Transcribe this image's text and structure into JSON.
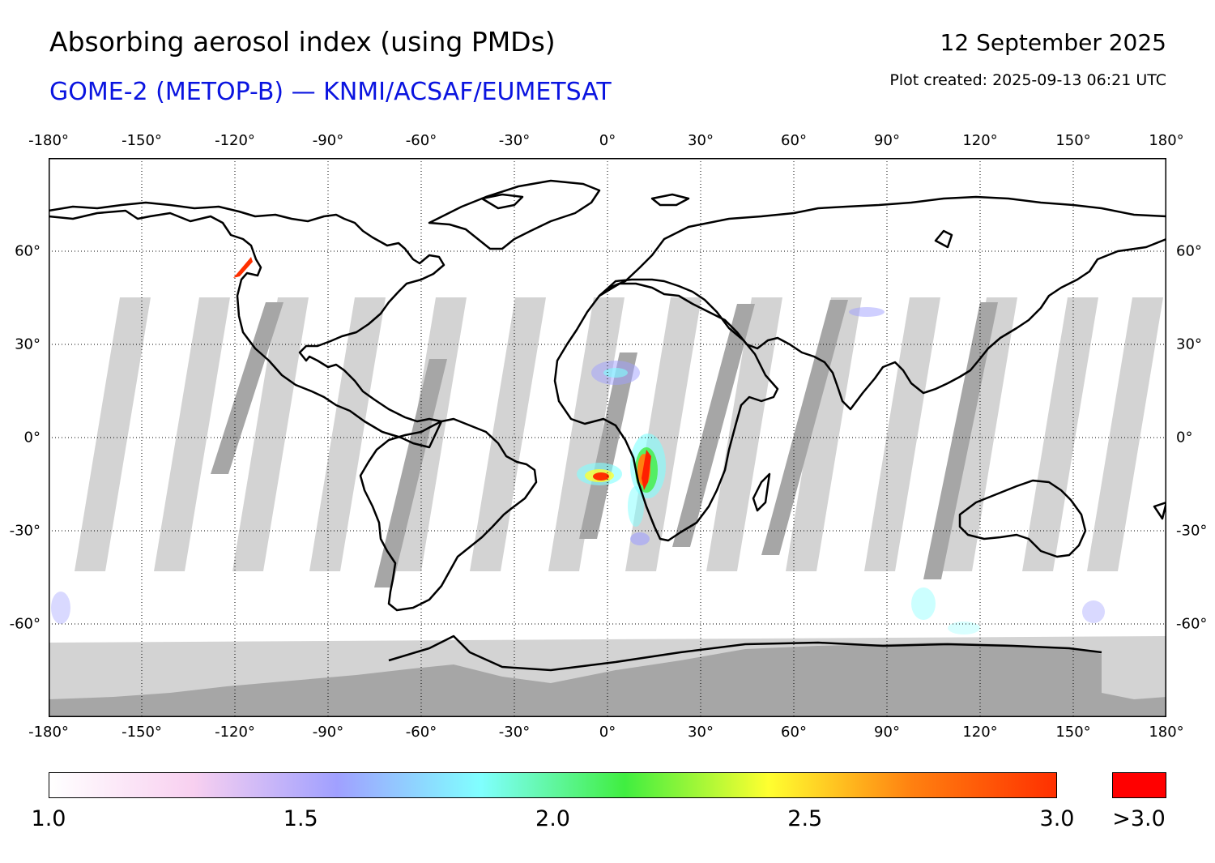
{
  "header": {
    "title": "Absorbing aerosol index (using PMDs)",
    "subtitle": "GOME-2 (METOP-B) — KNMI/ACSAF/EUMETSAT",
    "date": "12 September 2025",
    "plot_created": "Plot created: 2025-09-13 06:21 UTC"
  },
  "map": {
    "projection": "equirectangular",
    "lon_range": [
      -180,
      180
    ],
    "lat_range": [
      -90,
      90
    ],
    "gridlines": "dotted",
    "lon_ticks": [
      {
        "value": -180,
        "label": "-180°"
      },
      {
        "value": -150,
        "label": "-150°"
      },
      {
        "value": -120,
        "label": "-120°"
      },
      {
        "value": -90,
        "label": "-90°"
      },
      {
        "value": -60,
        "label": "-60°"
      },
      {
        "value": -30,
        "label": "-30°"
      },
      {
        "value": 0,
        "label": "0°"
      },
      {
        "value": 30,
        "label": "30°"
      },
      {
        "value": 60,
        "label": "60°"
      },
      {
        "value": 90,
        "label": "90°"
      },
      {
        "value": 120,
        "label": "120°"
      },
      {
        "value": 150,
        "label": "150°"
      },
      {
        "value": 180,
        "label": "180°"
      }
    ],
    "lat_ticks": [
      {
        "value": 60,
        "label": "60°"
      },
      {
        "value": 30,
        "label": "30°"
      },
      {
        "value": 0,
        "label": "0°"
      },
      {
        "value": -30,
        "label": "-30°"
      },
      {
        "value": -60,
        "label": "-60°"
      }
    ],
    "colors": {
      "no_data_light": "#d3d3d3",
      "no_data_dark": "#a6a6a6",
      "coastline": "#000000"
    },
    "aerosol_hotspots": [
      {
        "region": "Southern Africa / Angola coast",
        "lon": 12,
        "lat": -10,
        "max_index": ">3.0"
      },
      {
        "region": "South Atlantic off Angola",
        "lon": -1,
        "lat": -8,
        "max_index": 3.0
      },
      {
        "region": "Western Canada",
        "lon": -117,
        "lat": 56,
        "max_index": ">3.0"
      },
      {
        "region": "Sahara",
        "lon": 3,
        "lat": 15,
        "max_index": 2.0
      },
      {
        "region": "Central Asia",
        "lon": 82,
        "lat": 40,
        "max_index": 1.8
      }
    ]
  },
  "colorbar": {
    "min": 1.0,
    "max": 3.0,
    "overflow_label": ">3.0",
    "overflow_color": "#ff0000",
    "stops": [
      "#ffffff",
      "#f8d0f0",
      "#a0a0ff",
      "#80ffff",
      "#40ee40",
      "#ffff30",
      "#ff8010",
      "#ff3000"
    ],
    "tick_labels": [
      {
        "value": 1.0,
        "label": "1.0"
      },
      {
        "value": 1.5,
        "label": "1.5"
      },
      {
        "value": 2.0,
        "label": "2.0"
      },
      {
        "value": 2.5,
        "label": "2.5"
      },
      {
        "value": 3.0,
        "label": "3.0"
      }
    ]
  }
}
